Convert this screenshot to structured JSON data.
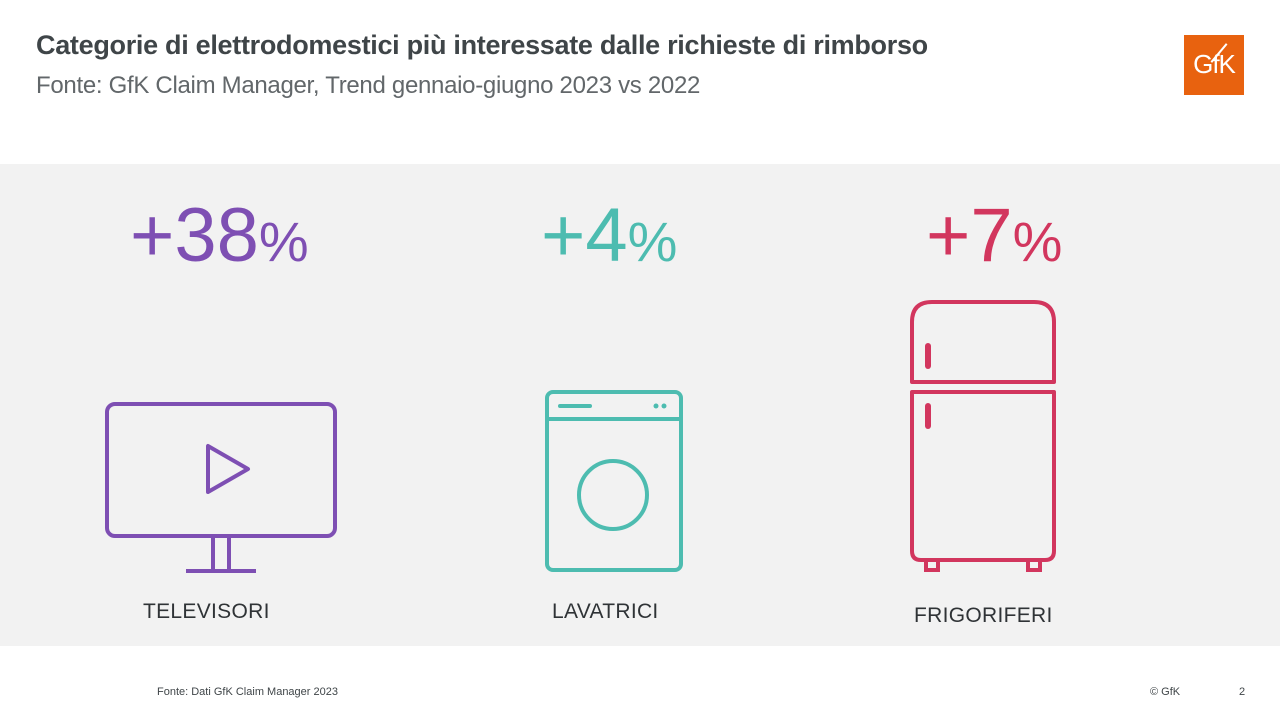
{
  "header": {
    "title": "Categorie di elettrodomestici più interessate dalle richieste di rimborso",
    "subtitle": "Fonte: GfK Claim Manager, Trend gennaio-giugno 2023 vs 2022",
    "logo_text": "GfK",
    "logo_color": "#e8620f"
  },
  "categories": [
    {
      "value": "+38",
      "unit": "%",
      "label": "TELEVISORI",
      "icon": "tv-play-icon",
      "color": "#7e4fb3"
    },
    {
      "value": "+4",
      "unit": "%",
      "label": "LAVATRICI",
      "icon": "washing-machine-icon",
      "color": "#4dbcb0"
    },
    {
      "value": "+7",
      "unit": "%",
      "label": "FRIGORIFERI",
      "icon": "refrigerator-icon",
      "color": "#d2365e"
    }
  ],
  "footer": {
    "source": "Fonte: Dati GfK Claim Manager 2023",
    "copyright": "© GfK",
    "page_number": "2"
  }
}
